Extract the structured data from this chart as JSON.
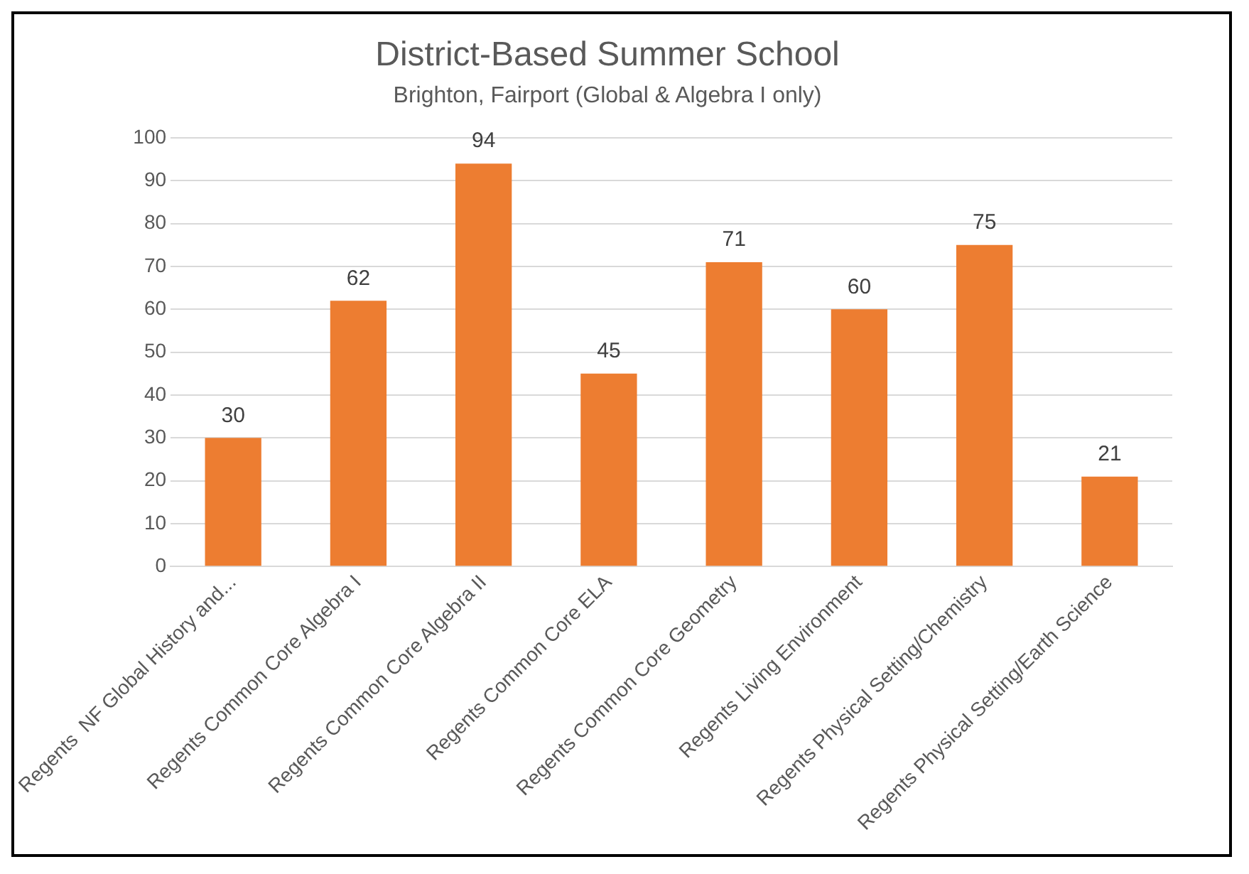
{
  "chart_data": {
    "type": "bar",
    "title": "District-Based Summer School",
    "subtitle": "Brighton, Fairport (Global & Algebra I only)",
    "categories": [
      "Regents  NF Global History and...",
      "Regents Common Core Algebra I",
      "Regents Common Core Algebra II",
      "Regents Common Core ELA",
      "Regents Common Core Geometry",
      "Regents Living Environment",
      "Regents Physical Setting/Chemistry",
      "Regents Physical Setting/Earth Science"
    ],
    "values": [
      30,
      62,
      94,
      45,
      71,
      60,
      75,
      21
    ],
    "color": "#ed7d31",
    "ylim": [
      0,
      100
    ],
    "yticks": [
      0,
      10,
      20,
      30,
      40,
      50,
      60,
      70,
      80,
      90,
      100
    ],
    "grid": "y",
    "legend": false,
    "data_labels": true
  }
}
